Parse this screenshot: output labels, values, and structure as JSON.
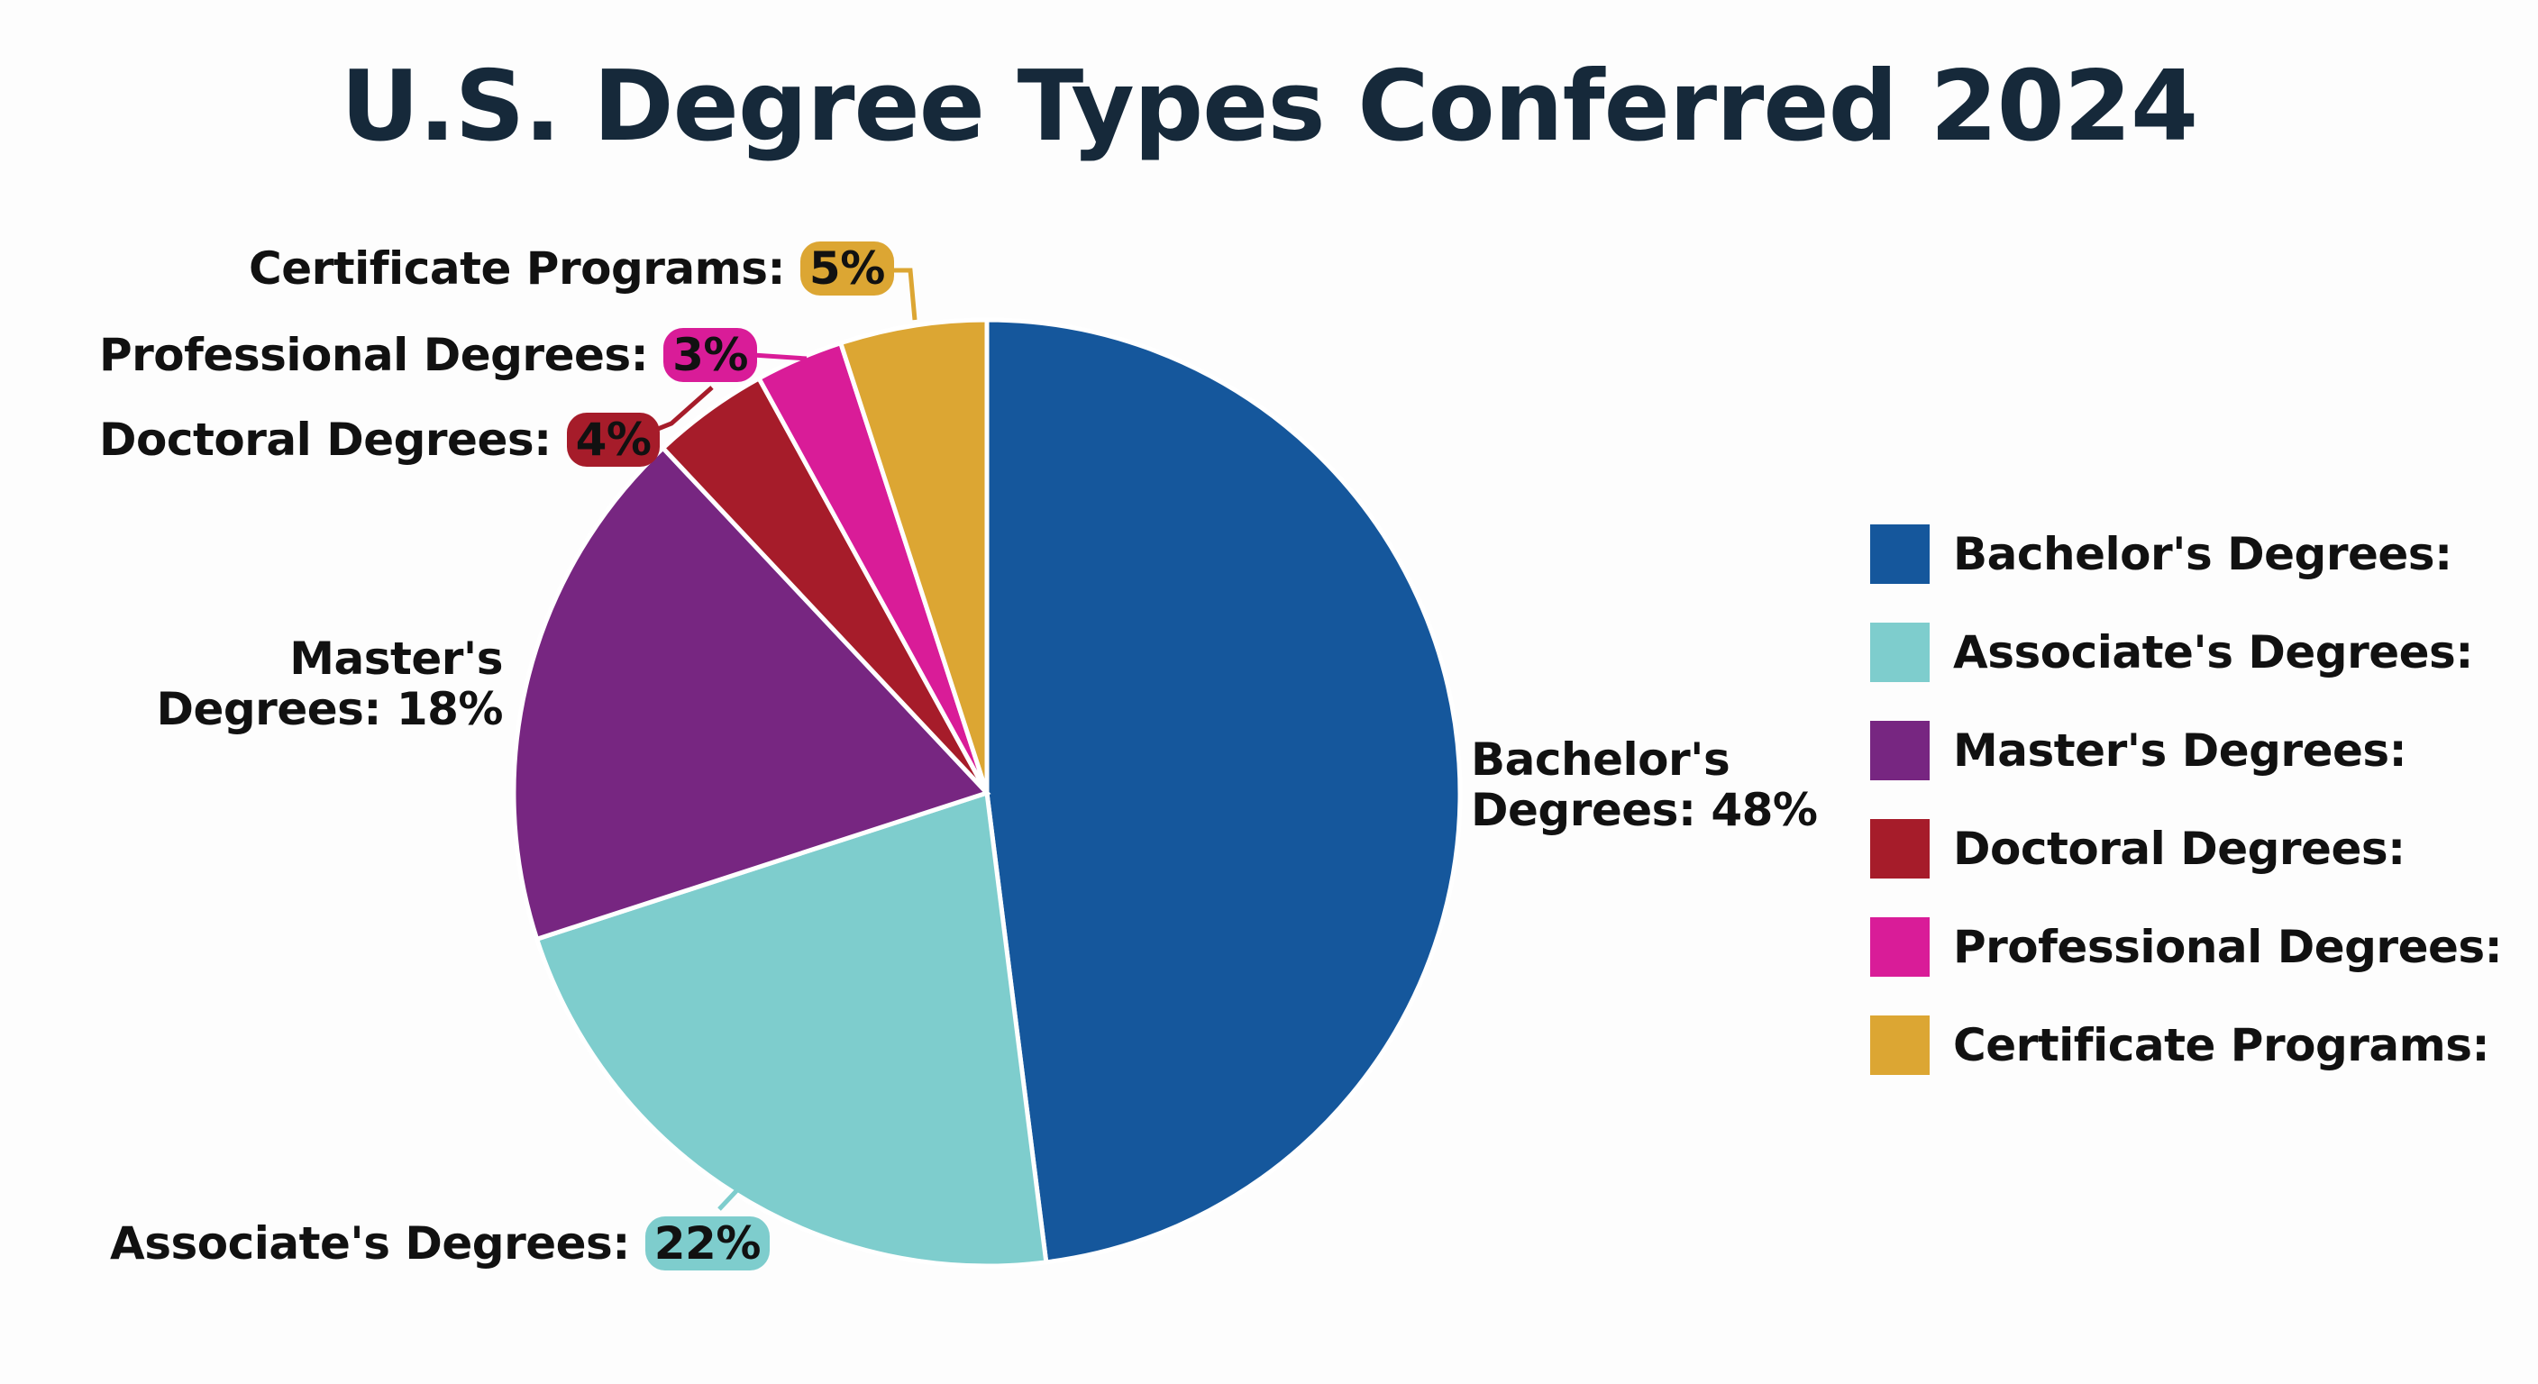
{
  "title": "U.S. Degree Types Conferred 2024",
  "chart_data": {
    "type": "pie",
    "title": "U.S. Degree Types Conferred 2024",
    "start_angle": "12 o'clock",
    "direction": "clockwise",
    "categories": [
      "Bachelor's Degrees",
      "Associate's Degrees",
      "Master's Degrees",
      "Doctoral Degrees",
      "Professional Degrees",
      "Certificate Programs"
    ],
    "values": [
      48,
      22,
      18,
      4,
      3,
      5
    ],
    "unit": "%",
    "colors": [
      "#15579c",
      "#7ecdcd",
      "#772681",
      "#a61c2a",
      "#d91c98",
      "#dca633"
    ],
    "legend_position": "right",
    "legend": [
      "Bachelor's Degrees:",
      "Associate's Degrees:",
      "Master's Degrees:",
      "Doctoral Degrees:",
      "Professional Degrees:",
      "Certificate Programs:"
    ]
  },
  "labels": {
    "bachelors": {
      "line1": "Bachelor's",
      "line2": "Degrees: 48%"
    },
    "associates": {
      "text": "Associate's Degrees:",
      "value": "22%"
    },
    "masters": {
      "line1": "Master's",
      "line2": "Degrees: 18%"
    },
    "doctoral": {
      "text": "Doctoral Degrees:",
      "value": "4%"
    },
    "professional": {
      "text": "Professional Degrees:",
      "value": "3%"
    },
    "certificate": {
      "text": "Certificate Programs:",
      "value": "5%"
    }
  },
  "legend": {
    "items": [
      {
        "label": "Bachelor's Degrees:",
        "color": "#15579c"
      },
      {
        "label": "Associate's Degrees:",
        "color": "#7ecdcd"
      },
      {
        "label": "Master's Degrees:",
        "color": "#772681"
      },
      {
        "label": "Doctoral Degrees:",
        "color": "#a61c2a"
      },
      {
        "label": "Professional Degrees:",
        "color": "#d91c98"
      },
      {
        "label": "Certificate Programs:",
        "color": "#dca633"
      }
    ]
  }
}
